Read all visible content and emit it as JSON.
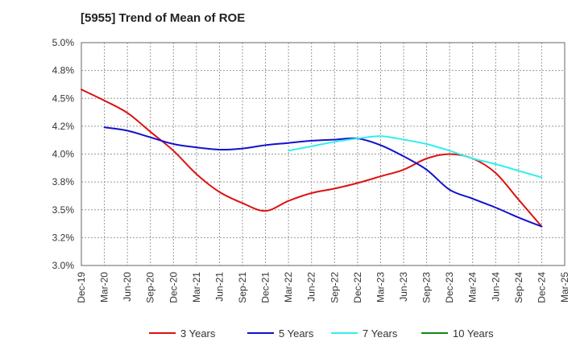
{
  "chart_data": {
    "type": "line",
    "title": "[5955]  Trend of Mean of ROE",
    "xlabel": "",
    "ylabel": "",
    "categories": [
      "Dec-19",
      "Mar-20",
      "Jun-20",
      "Sep-20",
      "Dec-20",
      "Mar-21",
      "Jun-21",
      "Sep-21",
      "Dec-21",
      "Mar-22",
      "Jun-22",
      "Sep-22",
      "Dec-22",
      "Mar-23",
      "Jun-23",
      "Sep-23",
      "Dec-23",
      "Mar-24",
      "Jun-24",
      "Sep-24",
      "Dec-24",
      "Mar-25"
    ],
    "y_ticks": [
      "3.0%",
      "3.2%",
      "3.5%",
      "3.8%",
      "4.0%",
      "4.2%",
      "4.5%",
      "4.8%",
      "5.0%"
    ],
    "ylim": [
      3.0,
      5.0
    ],
    "grid": true,
    "legend_position": "bottom",
    "series": [
      {
        "name": "3 Years",
        "color": "#dd1111",
        "values": [
          4.58,
          4.48,
          4.37,
          4.2,
          4.03,
          3.82,
          3.66,
          3.56,
          3.49,
          3.58,
          3.65,
          3.69,
          3.74,
          3.8,
          3.86,
          3.96,
          4.0,
          3.96,
          3.83,
          3.59,
          3.35,
          null
        ]
      },
      {
        "name": "5 Years",
        "color": "#1111cc",
        "values": [
          null,
          4.24,
          4.21,
          4.15,
          4.09,
          4.06,
          4.04,
          4.05,
          4.08,
          4.1,
          4.12,
          4.13,
          4.14,
          4.08,
          3.98,
          3.86,
          3.68,
          3.6,
          3.52,
          3.43,
          3.35,
          null
        ]
      },
      {
        "name": "7 Years",
        "color": "#33eeee",
        "values": [
          null,
          null,
          null,
          null,
          null,
          null,
          null,
          null,
          null,
          4.03,
          4.07,
          4.11,
          4.14,
          4.16,
          4.13,
          4.09,
          4.03,
          3.96,
          3.91,
          3.85,
          3.79,
          null
        ]
      },
      {
        "name": "10 Years",
        "color": "#118811",
        "values": [
          null,
          null,
          null,
          null,
          null,
          null,
          null,
          null,
          null,
          null,
          null,
          null,
          null,
          null,
          null,
          null,
          null,
          null,
          null,
          null,
          null,
          null
        ]
      }
    ]
  }
}
